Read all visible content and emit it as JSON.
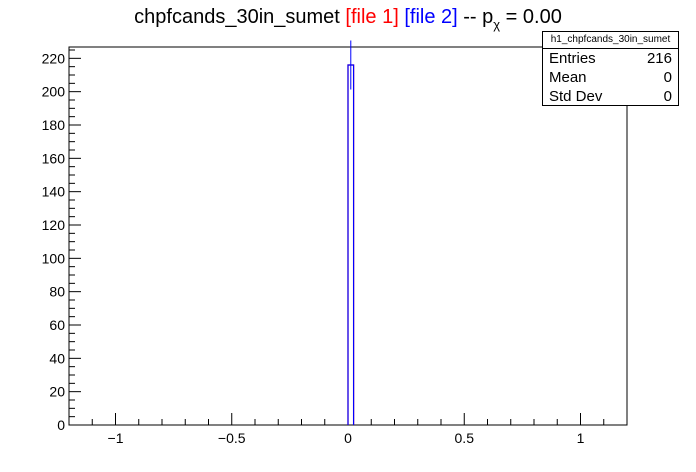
{
  "title": {
    "main": "chpfcands_30in_sumet",
    "file1": "[file 1]",
    "file2": "[file 2]",
    "sep": "-- p",
    "sub": "χ",
    "eq": "= 0.00"
  },
  "stats": {
    "name": "h1_chpfcands_30in_sumet",
    "rows": [
      {
        "label": "Entries",
        "value": "216"
      },
      {
        "label": "Mean",
        "value": "0"
      },
      {
        "label": "Std Dev",
        "value": "0"
      }
    ]
  },
  "colors": {
    "file1": "#ff0000",
    "file2": "#0000ff",
    "axis": "#000000"
  },
  "chart_data": {
    "type": "bar",
    "xlim": [
      -1.2,
      1.2
    ],
    "ylim": [
      0,
      226.8
    ],
    "x_ticks": [
      -1,
      -0.5,
      0,
      0.5,
      1
    ],
    "x_tick_labels": [
      "−1",
      "−0.5",
      "0",
      "0.5",
      "1"
    ],
    "y_ticks": [
      0,
      20,
      40,
      60,
      80,
      100,
      120,
      140,
      160,
      180,
      200,
      220
    ],
    "y_tick_labels": [
      "0",
      "20",
      "40",
      "60",
      "80",
      "100",
      "120",
      "140",
      "160",
      "180",
      "200",
      "220"
    ],
    "series": [
      {
        "name": "[file 1]",
        "color": "#ff0000",
        "bins": [
          {
            "x0": 0.0,
            "x1": 0.024,
            "value": 216
          }
        ]
      },
      {
        "name": "[file 2]",
        "color": "#0000ff",
        "bins": [
          {
            "x0": 0.0,
            "x1": 0.024,
            "value": 216,
            "err": 14.7
          }
        ]
      }
    ]
  }
}
